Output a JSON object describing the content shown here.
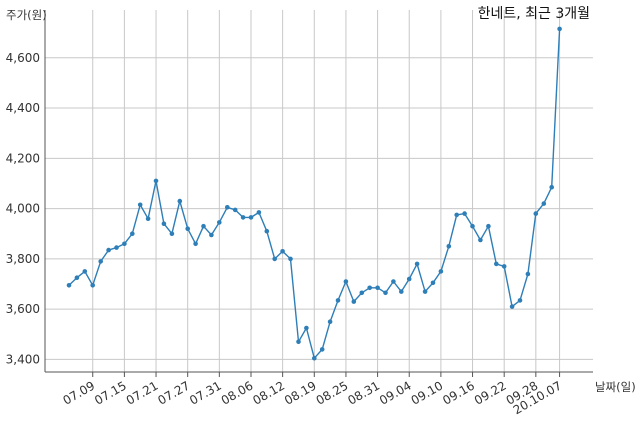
{
  "chart_data": {
    "type": "line",
    "title": "한네트, 최근 3개월",
    "ylabel": "주가(원)",
    "xlabel": "날짜(일)",
    "ylim": [
      3350,
      4790
    ],
    "y_ticks": [
      3400,
      3600,
      3800,
      4000,
      4200,
      4400,
      4600
    ],
    "y_tick_labels": [
      "3,400",
      "3,600",
      "3,800",
      "4,000",
      "4,200",
      "4,400",
      "4,600"
    ],
    "x_tick_labels": [
      "07.09",
      "07.15",
      "07.21",
      "07.27",
      "07.31",
      "08.06",
      "08.12",
      "08.19",
      "08.25",
      "08.31",
      "09.04",
      "09.10",
      "09.16",
      "09.22",
      "09.28",
      "20.10.07"
    ],
    "grid": true,
    "legend": "none",
    "colors": {
      "line": "#2e7eb8",
      "grid": "#c8c8c8",
      "axis": "#555555"
    },
    "series": [
      {
        "values": [
          3695,
          3725,
          3750,
          3695,
          3790,
          3835,
          3845,
          3860,
          3900,
          4015,
          3960,
          4110,
          3940,
          3900,
          4030,
          3920,
          3860,
          3930,
          3895,
          3945,
          4005,
          3995,
          3965,
          3965,
          3985,
          3910,
          3800,
          3830,
          3800,
          3470,
          3525,
          3405,
          3440,
          3550,
          3635,
          3710,
          3630,
          3665,
          3685,
          3685,
          3665,
          3710,
          3670,
          3720,
          3780,
          3670,
          3705,
          3750,
          3850,
          3975,
          3980,
          3930,
          3875,
          3930,
          3780,
          3770,
          3610,
          3635,
          3740,
          3980,
          4020,
          4085,
          4715
        ]
      }
    ]
  }
}
